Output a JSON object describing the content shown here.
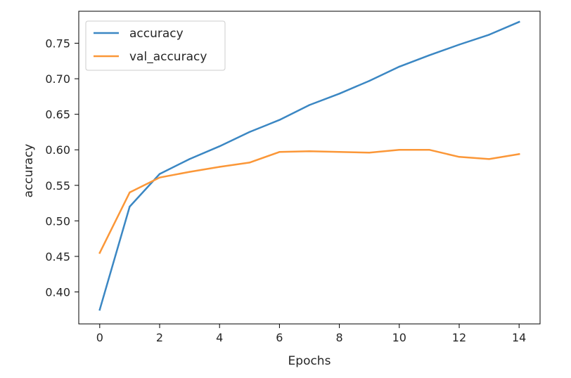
{
  "chart_data": {
    "type": "line",
    "title": "",
    "xlabel": "Epochs",
    "ylabel": "accuracy",
    "x": [
      0,
      1,
      2,
      3,
      4,
      5,
      6,
      7,
      8,
      9,
      10,
      11,
      12,
      13,
      14
    ],
    "xlim": [
      -0.7,
      14.7
    ],
    "ylim": [
      0.355,
      0.795
    ],
    "xticks": [
      0,
      2,
      4,
      6,
      8,
      10,
      12,
      14
    ],
    "xtick_labels": [
      "0",
      "2",
      "4",
      "6",
      "8",
      "10",
      "12",
      "14"
    ],
    "yticks": [
      0.4,
      0.45,
      0.5,
      0.55,
      0.6,
      0.65,
      0.7,
      0.75
    ],
    "ytick_labels": [
      "0.40",
      "0.45",
      "0.50",
      "0.55",
      "0.60",
      "0.65",
      "0.70",
      "0.75"
    ],
    "grid": false,
    "legend_position": "upper left",
    "series": [
      {
        "name": "accuracy",
        "color": "#3b87c3",
        "values": [
          0.375,
          0.52,
          0.566,
          0.587,
          0.605,
          0.625,
          0.642,
          0.663,
          0.679,
          0.697,
          0.717,
          0.733,
          0.748,
          0.762,
          0.78
        ]
      },
      {
        "name": "val_accuracy",
        "color": "#fb9738",
        "values": [
          0.455,
          0.54,
          0.561,
          0.569,
          0.576,
          0.582,
          0.597,
          0.598,
          0.597,
          0.596,
          0.6,
          0.6,
          0.59,
          0.587,
          0.594
        ]
      }
    ]
  }
}
